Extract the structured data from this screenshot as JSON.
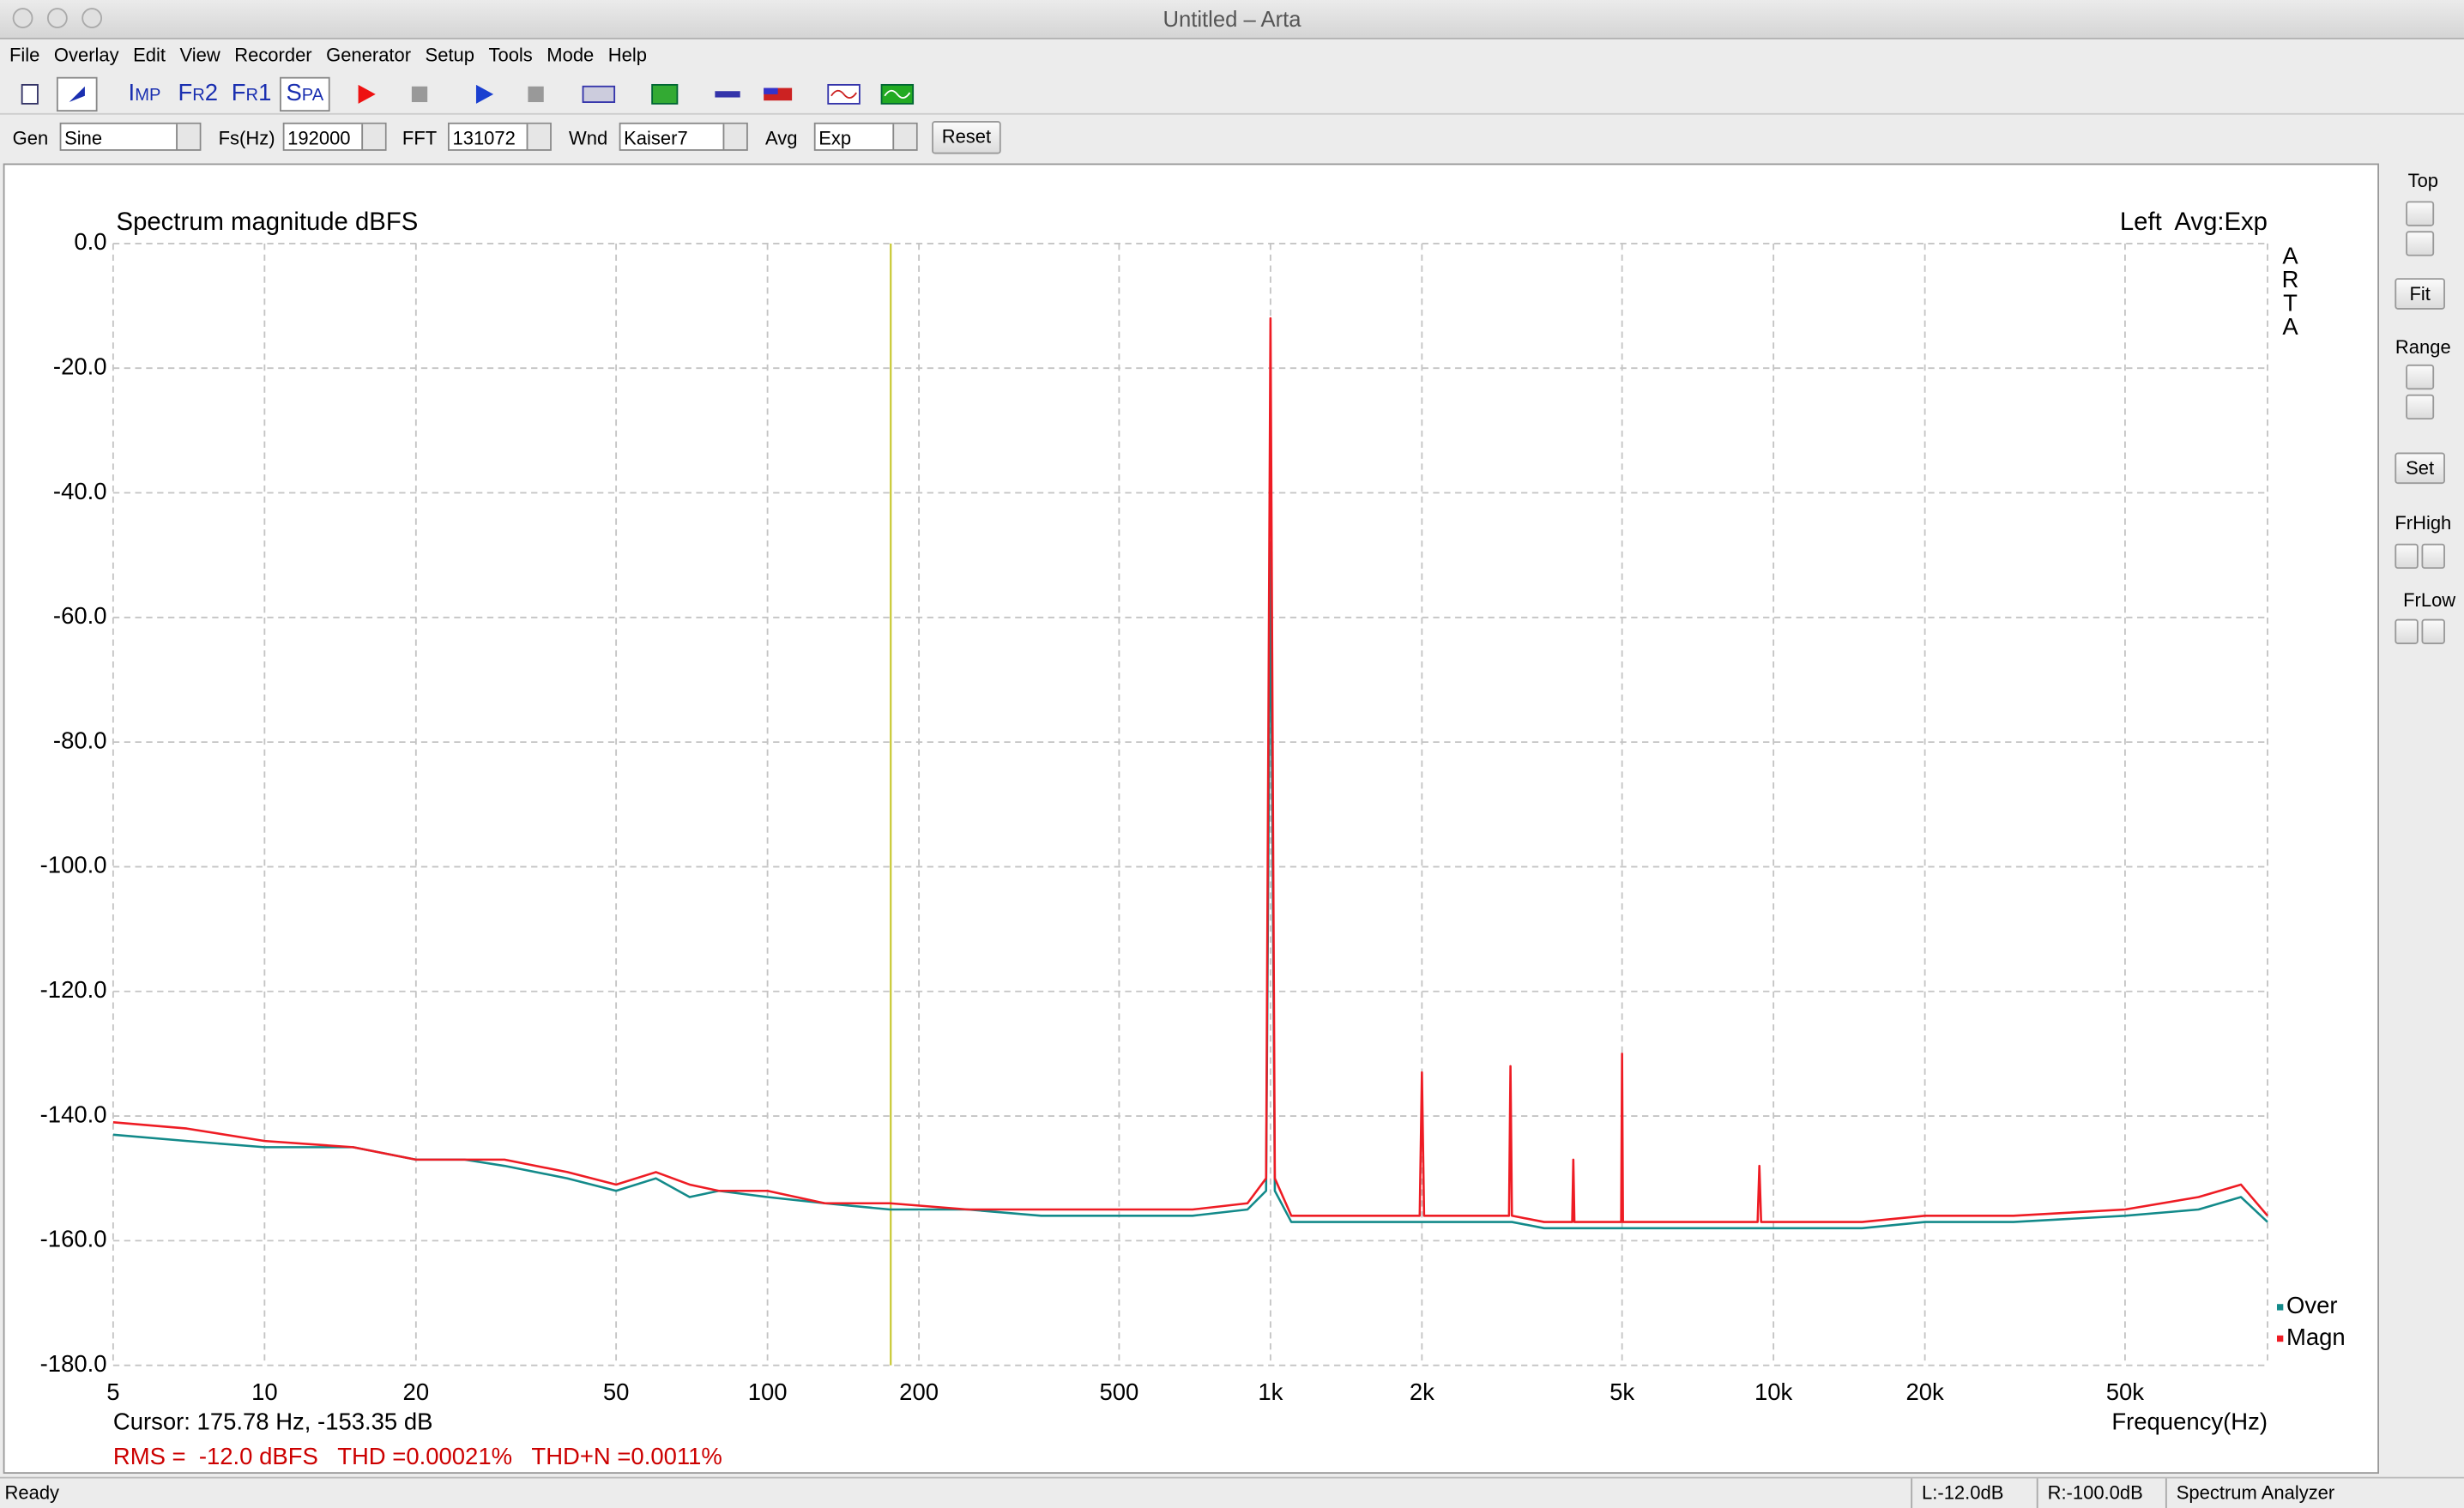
{
  "window": {
    "title": "Untitled – Arta"
  },
  "menu": [
    "File",
    "Overlay",
    "Edit",
    "View",
    "Recorder",
    "Generator",
    "Setup",
    "Tools",
    "Mode",
    "Help"
  ],
  "toolbar": {
    "buttons": [
      "Imp",
      "Fr2",
      "Fr1",
      "Spa"
    ]
  },
  "controls": {
    "gen_label": "Gen",
    "gen": "Sine",
    "fs_label": "Fs(Hz)",
    "fs": "192000",
    "fft_label": "FFT",
    "fft": "131072",
    "wnd_label": "Wnd",
    "wnd": "Kaiser7",
    "avg_label": "Avg",
    "avg": "Exp",
    "reset": "Reset"
  },
  "side_panel": {
    "top": "Top",
    "fit": "Fit",
    "range": "Range",
    "set": "Set",
    "frhigh": "FrHigh",
    "frlow": "FrLow"
  },
  "status": {
    "ready": "Ready",
    "left": "L:-12.0dB",
    "right": "R:-100.0dB",
    "mode": "Spectrum Analyzer"
  },
  "chart_data": {
    "type": "line",
    "title": "Spectrum magnitude dBFS",
    "subtitle": "Left  Avg:Exp",
    "side_label": "ARTA",
    "x_label": "Frequency(Hz)",
    "x_scale": "log",
    "grid": true,
    "xlim": [
      5,
      96000
    ],
    "xticks": [
      5,
      10,
      20,
      50,
      100,
      200,
      500,
      {
        "value": 1000,
        "label": "1k"
      },
      {
        "value": 2000,
        "label": "2k"
      },
      {
        "value": 5000,
        "label": "5k"
      },
      {
        "value": 10000,
        "label": "10k"
      },
      {
        "value": 20000,
        "label": "20k"
      },
      {
        "value": 50000,
        "label": "50k"
      }
    ],
    "ylim": [
      -180,
      0
    ],
    "yticks": [
      {
        "value": 0,
        "label": "0.0"
      },
      {
        "value": -20,
        "label": "-20.0"
      },
      {
        "value": -40,
        "label": "-40.0"
      },
      {
        "value": -60,
        "label": "-60.0"
      },
      {
        "value": -80,
        "label": "-80.0"
      },
      {
        "value": -100,
        "label": "-100.0"
      },
      {
        "value": -120,
        "label": "-120.0"
      },
      {
        "value": -140,
        "label": "-140.0"
      },
      {
        "value": -160,
        "label": "-160.0"
      },
      {
        "value": -180,
        "label": "-180.0"
      }
    ],
    "x": [
      5,
      7,
      10,
      15,
      20,
      25,
      30,
      40,
      50,
      60,
      70,
      80,
      100,
      130,
      175,
      250,
      350,
      500,
      700,
      900,
      980,
      1000,
      1020,
      1100,
      1500,
      1980,
      2000,
      2020,
      2500,
      2980,
      3000,
      3020,
      3500,
      3980,
      4000,
      4020,
      4500,
      4980,
      5000,
      5020,
      7000,
      9300,
      9375,
      9450,
      15000,
      20000,
      30000,
      50000,
      70000,
      85000,
      96000
    ],
    "series": [
      {
        "name": "Over",
        "color": "#138a8a",
        "values": [
          -143,
          -144,
          -145,
          -145,
          -147,
          -147,
          -148,
          -150,
          -152,
          -150,
          -153,
          -152,
          -153,
          -154,
          -155,
          -155,
          -156,
          -156,
          -156,
          -155,
          -152,
          -48,
          -152,
          -157,
          -157,
          -157,
          -157,
          -157,
          -157,
          -157,
          -157,
          -157,
          -158,
          -158,
          -158,
          -158,
          -158,
          -158,
          -158,
          -158,
          -158,
          -158,
          -158,
          -158,
          -158,
          -157,
          -157,
          -156,
          -155,
          -153,
          -157
        ]
      },
      {
        "name": "Magn",
        "color": "#ee1c24",
        "values": [
          -141,
          -142,
          -144,
          -145,
          -147,
          -147,
          -147,
          -149,
          -151,
          -149,
          -151,
          -152,
          -152,
          -154,
          -154,
          -155,
          -155,
          -155,
          -155,
          -154,
          -150,
          -12,
          -150,
          -156,
          -156,
          -156,
          -133,
          -156,
          -156,
          -156,
          -132,
          -156,
          -157,
          -157,
          -147,
          -157,
          -157,
          -157,
          -130,
          -157,
          -157,
          -157,
          -148,
          -157,
          -157,
          -156,
          -156,
          -155,
          -153,
          -151,
          -156
        ]
      }
    ],
    "cursor": {
      "x": 175.78,
      "color": "#c8c832",
      "label": "Cursor: 175.78 Hz, -153.35 dB"
    },
    "stats": "RMS =  -12.0 dBFS   THD =0.00021%   THD+N =0.0011%"
  }
}
